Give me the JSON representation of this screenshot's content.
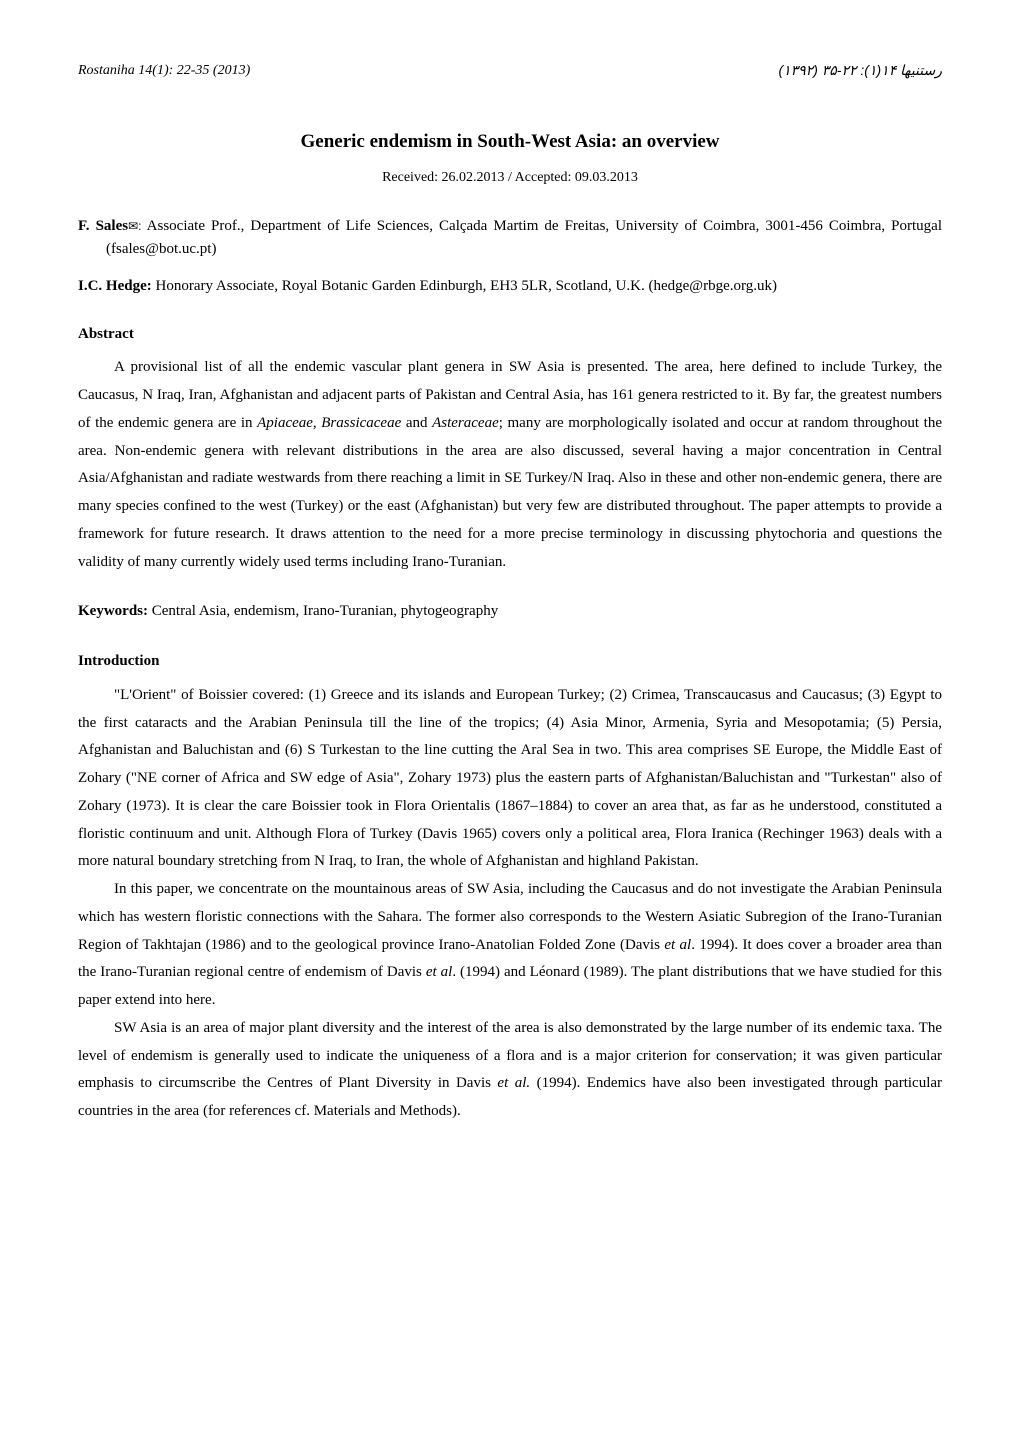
{
  "header": {
    "left": "Rostaniha 14(1): 22-35 (2013)",
    "right": "رستنیها ۱۴(۱): ۲۲-۳۵ (۱۳۹۲)"
  },
  "title": "Generic endemism in South-West Asia: an overview",
  "received_line": "Received: 26.02.2013 / Accepted: 09.03.2013",
  "authors": [
    {
      "name": "F. Sales",
      "envelope": "✉:",
      "affiliation": " Associate Prof., Department of Life Sciences, Calçada Martim de Freitas, University of Coimbra, 3001-456 Coimbra, Portugal (fsales@bot.uc.pt)"
    },
    {
      "name": "I.C. Hedge:",
      "envelope": "",
      "affiliation": " Honorary Associate, Royal Botanic Garden Edinburgh, EH3 5LR, Scotland, U.K. (hedge@rbge.org.uk)"
    }
  ],
  "abstract": {
    "heading": "Abstract",
    "text_before_italic1": "A provisional list of all the endemic vascular plant genera in SW Asia is presented. The area, here defined to include Turkey, the Caucasus, N Iraq, Iran, Afghanistan and adjacent parts of Pakistan and Central Asia, has 161 genera restricted to it. By far, the greatest numbers of the endemic genera are in ",
    "italic1": "Apiaceae",
    "sep1": ", ",
    "italic2": "Brassicaceae",
    "sep2": " and ",
    "italic3": "Asteraceae",
    "text_after_italic3": "; many are morphologically isolated and occur at random throughout the area. Non-endemic genera with relevant distributions in the area are also discussed, several having a major concentration in Central Asia/Afghanistan and radiate westwards from there reaching a limit in SE Turkey/N Iraq. Also in these and other non-endemic genera, there are many species confined to the west (Turkey) or the east (Afghanistan) but very few are distributed throughout. The paper attempts to provide a framework for future research. It draws attention to the need for a more precise terminology in discussing phytochoria and questions the validity of many currently widely used terms including Irano-Turanian."
  },
  "keywords": {
    "label": "Keywords:",
    "text": " Central Asia, endemism, Irano-Turanian, phytogeography"
  },
  "introduction": {
    "heading": "Introduction",
    "p1": "\"L'Orient\" of Boissier covered: (1) Greece and its islands and European Turkey; (2) Crimea, Transcaucasus and Caucasus; (3) Egypt to the first cataracts and the Arabian Peninsula till the line of the tropics; (4) Asia Minor, Armenia, Syria and Mesopotamia; (5) Persia, Afghanistan and Baluchistan and (6) S Turkestan to the line cutting the Aral Sea in two. This area comprises SE Europe, the Middle East of Zohary (\"NE corner of Africa and SW edge of Asia\", Zohary 1973) plus the eastern parts of Afghanistan/Baluchistan and \"Turkestan\" also of Zohary (1973). It is clear the care Boissier took in Flora Orientalis (1867–1884) to cover an area that, as far as he understood, constituted a floristic continuum and unit. Although Flora of Turkey (Davis 1965) covers only a political area, Flora Iranica (Rechinger 1963) deals with a more natural boundary stretching from N Iraq, to Iran, the whole of Afghanistan and highland Pakistan.",
    "p2_a": "In this paper, we concentrate on the mountainous areas of SW Asia, including the Caucasus and do not investigate the Arabian Peninsula which has western floristic connections with the Sahara. The former also corresponds to the Western Asiatic Subregion of the Irano-Turanian Region of Takhtajan (1986) and to the geological province Irano-Anatolian Folded Zone (Davis ",
    "p2_i1": "et al",
    "p2_b": ". 1994). It does cover a broader area than the Irano-Turanian regional centre of endemism of Davis ",
    "p2_i2": "et al",
    "p2_c": ". (1994) and Léonard (1989). The plant distributions that we have studied for this paper extend into here.",
    "p3_a": "SW Asia is an area of major plant diversity and the interest of the area is also demonstrated by the large number of its endemic taxa. The level of endemism is generally used to indicate the uniqueness of a flora and is a major criterion for conservation; it was given particular emphasis to circumscribe the Centres of Plant Diversity in Davis ",
    "p3_i1": "et al.",
    "p3_b": " (1994). Endemics have also been investigated through particular countries in the area (for references cf. Materials and Methods)."
  }
}
